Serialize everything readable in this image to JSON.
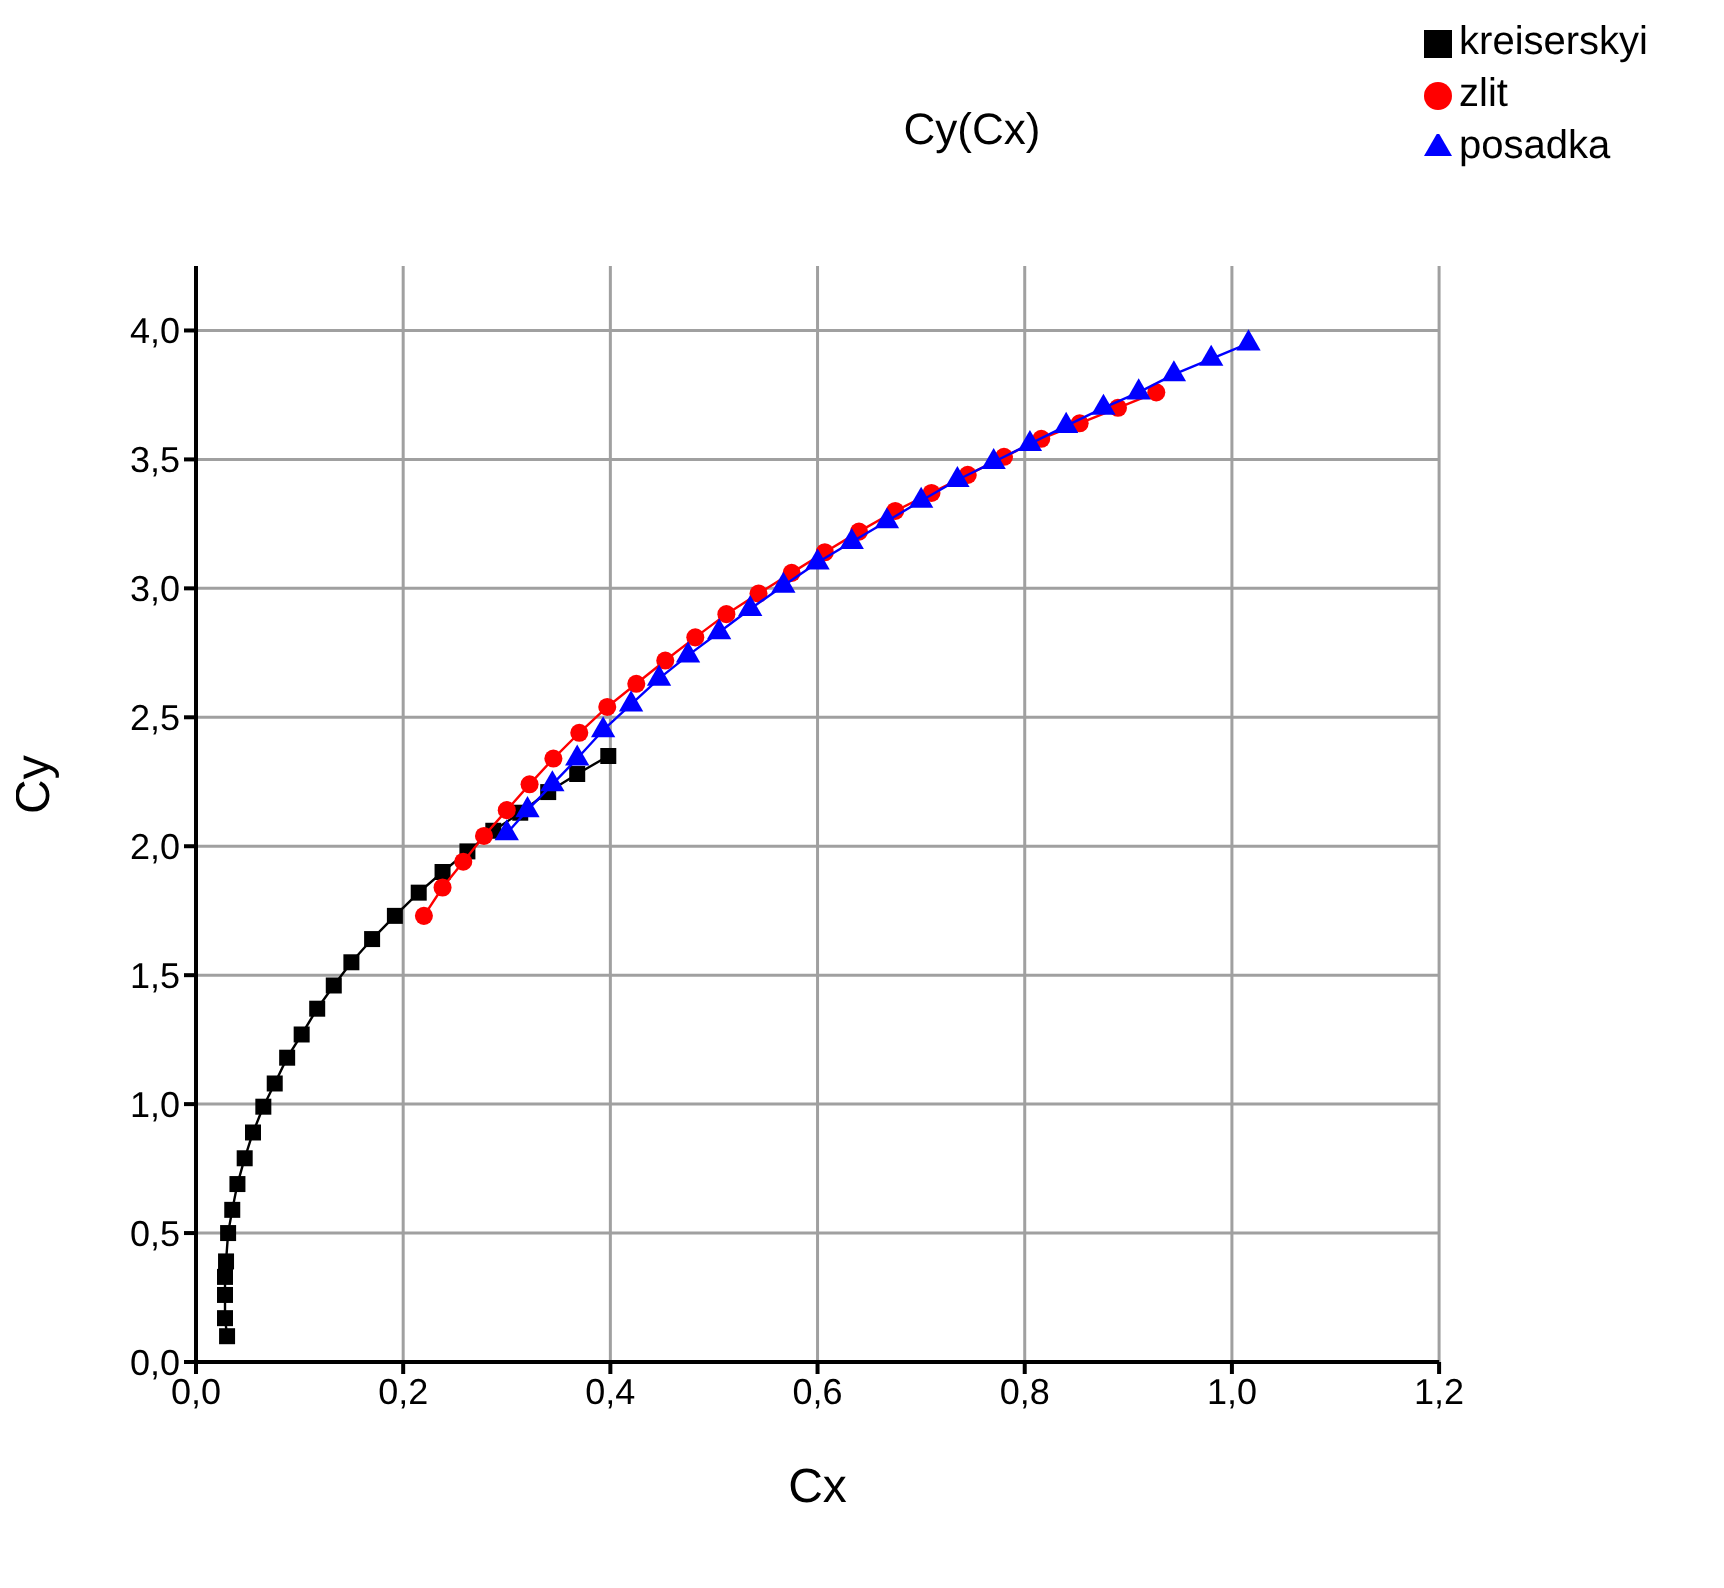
{
  "chart_data": {
    "type": "line",
    "title": "Cy(Cx)",
    "xlabel": "Cx",
    "ylabel": "Cy",
    "xlim": [
      0,
      1.2
    ],
    "ylim": [
      0,
      4.25
    ],
    "xticks": [
      {
        "value": 0,
        "label": "0,0"
      },
      {
        "value": 0.2,
        "label": "0,2"
      },
      {
        "value": 0.4,
        "label": "0,4"
      },
      {
        "value": 0.6,
        "label": "0,6"
      },
      {
        "value": 0.8,
        "label": "0,8"
      },
      {
        "value": 1,
        "label": "1,0"
      },
      {
        "value": 1.2,
        "label": "1,2"
      }
    ],
    "yticks": [
      {
        "value": 0,
        "label": "0,0"
      },
      {
        "value": 0.5,
        "label": "0,5"
      },
      {
        "value": 1,
        "label": "1,0"
      },
      {
        "value": 1.5,
        "label": "1,5"
      },
      {
        "value": 2,
        "label": "2,0"
      },
      {
        "value": 2.5,
        "label": "2,5"
      },
      {
        "value": 3,
        "label": "3,0"
      },
      {
        "value": 3.5,
        "label": "3,5"
      },
      {
        "value": 4,
        "label": "4,0"
      }
    ],
    "grid": true,
    "legend": "top right",
    "line_style": "solid",
    "series": [
      {
        "name": "kreiserskyi",
        "color": "#000000",
        "marker": "square",
        "x": [
          0.03,
          0.028,
          0.028,
          0.028,
          0.029,
          0.031,
          0.035,
          0.04,
          0.047,
          0.055,
          0.065,
          0.076,
          0.088,
          0.102,
          0.117,
          0.133,
          0.15,
          0.17,
          0.192,
          0.215,
          0.238,
          0.262,
          0.287,
          0.313,
          0.34,
          0.368,
          0.398
        ],
        "values": [
          0.1,
          0.17,
          0.26,
          0.33,
          0.39,
          0.5,
          0.59,
          0.69,
          0.79,
          0.89,
          0.99,
          1.08,
          1.18,
          1.27,
          1.37,
          1.46,
          1.55,
          1.64,
          1.73,
          1.82,
          1.9,
          1.98,
          2.06,
          2.13,
          2.21,
          2.28,
          2.35
        ]
      },
      {
        "name": "zlit",
        "color": "#ff0000",
        "marker": "circle",
        "x": [
          0.22,
          0.238,
          0.258,
          0.278,
          0.3,
          0.322,
          0.345,
          0.37,
          0.397,
          0.425,
          0.453,
          0.482,
          0.512,
          0.543,
          0.575,
          0.607,
          0.64,
          0.675,
          0.71,
          0.745,
          0.78,
          0.816,
          0.853,
          0.89,
          0.927
        ],
        "values": [
          1.73,
          1.84,
          1.94,
          2.04,
          2.14,
          2.24,
          2.34,
          2.44,
          2.54,
          2.63,
          2.72,
          2.81,
          2.9,
          2.98,
          3.06,
          3.14,
          3.22,
          3.3,
          3.37,
          3.44,
          3.51,
          3.58,
          3.64,
          3.7,
          3.76
        ]
      },
      {
        "name": "posadka",
        "color": "#0000ff",
        "marker": "triangle",
        "x": [
          0.3,
          0.32,
          0.344,
          0.368,
          0.393,
          0.42,
          0.447,
          0.475,
          0.505,
          0.535,
          0.567,
          0.6,
          0.633,
          0.667,
          0.7,
          0.735,
          0.77,
          0.805,
          0.84,
          0.876,
          0.91,
          0.944,
          0.98,
          1.016
        ],
        "values": [
          2.05,
          2.14,
          2.24,
          2.34,
          2.45,
          2.55,
          2.65,
          2.74,
          2.83,
          2.92,
          3.01,
          3.1,
          3.18,
          3.26,
          3.34,
          3.42,
          3.49,
          3.56,
          3.63,
          3.7,
          3.76,
          3.83,
          3.89,
          3.95
        ]
      }
    ]
  }
}
